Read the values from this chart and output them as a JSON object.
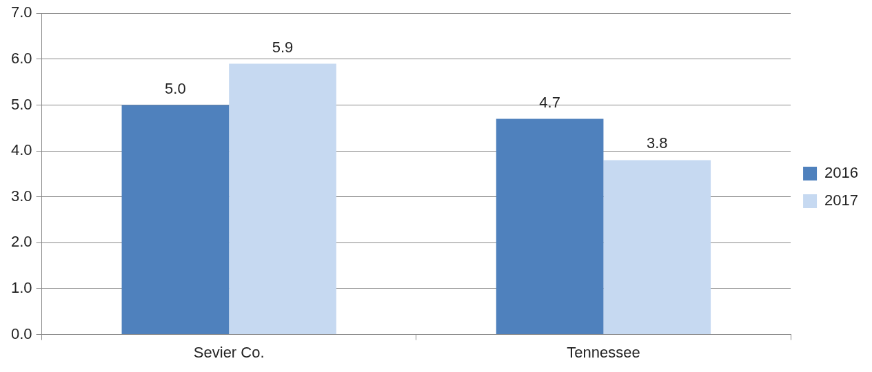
{
  "chart_data": {
    "type": "bar",
    "categories": [
      "Sevier Co.",
      "Tennessee"
    ],
    "series": [
      {
        "name": "2016",
        "color": "#4f81bd",
        "values": [
          5.0,
          4.7
        ],
        "value_labels": [
          "5.0",
          "4.7"
        ]
      },
      {
        "name": "2017",
        "color": "#c6d9f1",
        "values": [
          5.9,
          3.8
        ],
        "value_labels": [
          "5.9",
          "3.8"
        ]
      }
    ],
    "ylim": [
      0,
      7
    ],
    "yticks": [
      {
        "value": 0,
        "label": "0.0"
      },
      {
        "value": 1,
        "label": "1.0"
      },
      {
        "value": 2,
        "label": "2.0"
      },
      {
        "value": 3,
        "label": "3.0"
      },
      {
        "value": 4,
        "label": "4.0"
      },
      {
        "value": 5,
        "label": "5.0"
      },
      {
        "value": 6,
        "label": "6.0"
      },
      {
        "value": 7,
        "label": "7.0"
      }
    ],
    "grid": "y",
    "legend": "right"
  }
}
